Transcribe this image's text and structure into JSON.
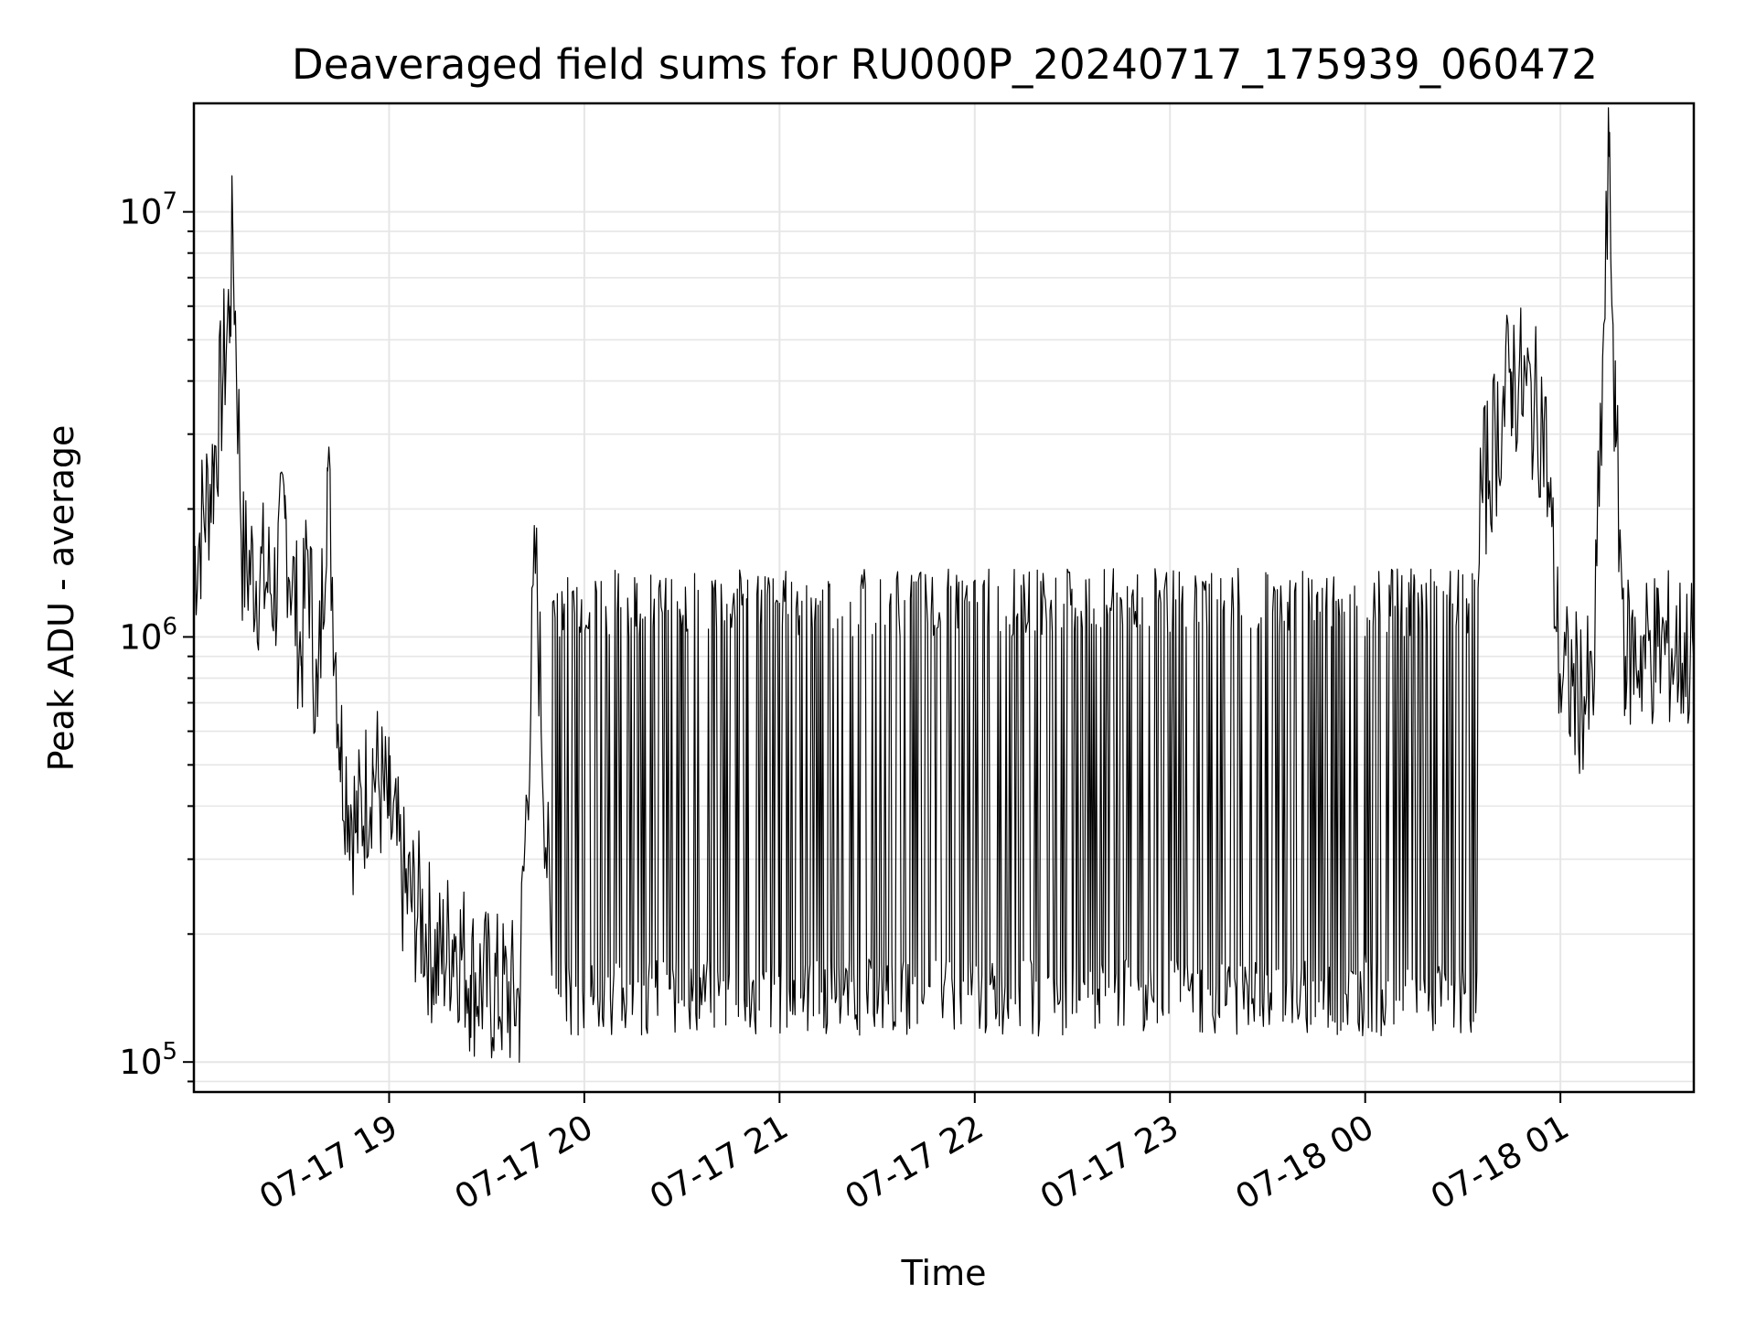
{
  "chart_data": {
    "type": "line",
    "title": "Deaveraged field sums for RU000P_20240717_175939_060472",
    "xlabel": "Time",
    "ylabel": "Peak ADU - average",
    "y_scale": "log",
    "ylim": [
      85000,
      18000000
    ],
    "xlim": [
      "2024-07-17 18:00",
      "2024-07-18 01:41"
    ],
    "grid": true,
    "line_color": "#000000",
    "grid_color": "#e6e6e6",
    "x_ticks": [
      {
        "label": "07-17 19",
        "value": "2024-07-17 19:00"
      },
      {
        "label": "07-17 20",
        "value": "2024-07-17 20:00"
      },
      {
        "label": "07-17 21",
        "value": "2024-07-17 21:00"
      },
      {
        "label": "07-17 22",
        "value": "2024-07-17 22:00"
      },
      {
        "label": "07-17 23",
        "value": "2024-07-17 23:00"
      },
      {
        "label": "07-18 00",
        "value": "2024-07-18 00:00"
      },
      {
        "label": "07-18 01",
        "value": "2024-07-18 01:00"
      }
    ],
    "y_ticks": [
      {
        "base": "10",
        "exp": "5",
        "value": 100000
      },
      {
        "base": "10",
        "exp": "6",
        "value": 1000000
      },
      {
        "base": "10",
        "exp": "7",
        "value": 10000000
      }
    ],
    "series": [
      {
        "points": [
          [
            "2024-07-17 18:00",
            1500000
          ],
          [
            "2024-07-17 18:06",
            2500000
          ],
          [
            "2024-07-17 18:09",
            4200000
          ],
          [
            "2024-07-17 18:11",
            6000000
          ],
          [
            "2024-07-17 18:12",
            8800000
          ],
          [
            "2024-07-17 18:15",
            1500000
          ],
          [
            "2024-07-17 18:25",
            1300000
          ],
          [
            "2024-07-17 18:28",
            1900000
          ],
          [
            "2024-07-17 18:33",
            900000
          ],
          [
            "2024-07-17 18:35",
            1600000
          ],
          [
            "2024-07-17 18:38",
            650000
          ],
          [
            "2024-07-17 18:41",
            2500000
          ],
          [
            "2024-07-17 18:45",
            550000
          ],
          [
            "2024-07-17 18:50",
            350000
          ],
          [
            "2024-07-17 18:55",
            500000
          ],
          [
            "2024-07-17 19:00",
            380000
          ],
          [
            "2024-07-17 19:05",
            250000
          ],
          [
            "2024-07-17 19:10",
            220000
          ],
          [
            "2024-07-17 19:15",
            170000
          ],
          [
            "2024-07-17 19:20",
            200000
          ],
          [
            "2024-07-17 19:25",
            160000
          ],
          [
            "2024-07-17 19:30",
            150000
          ],
          [
            "2024-07-17 19:40",
            140000
          ],
          [
            "2024-07-17 19:45",
            1500000
          ],
          [
            "2024-07-17 19:50",
            160000
          ],
          [
            "2024-07-17 20:00",
            150000
          ],
          [
            "2024-07-17 20:15",
            145000
          ],
          [
            "2024-07-17 20:30",
            140000
          ],
          [
            "2024-07-17 20:40",
            1300000
          ],
          [
            "2024-07-17 20:50",
            135000
          ],
          [
            "2024-07-17 21:00",
            1200000
          ],
          [
            "2024-07-17 21:15",
            1350000
          ],
          [
            "2024-07-17 21:30",
            130000
          ],
          [
            "2024-07-17 21:40",
            120000
          ],
          [
            "2024-07-17 21:55",
            1300000
          ],
          [
            "2024-07-17 22:15",
            1400000
          ],
          [
            "2024-07-17 22:30",
            130000
          ],
          [
            "2024-07-17 22:50",
            1400000
          ],
          [
            "2024-07-17 23:10",
            1350000
          ],
          [
            "2024-07-17 23:30",
            1400000
          ],
          [
            "2024-07-17 23:50",
            125000
          ],
          [
            "2024-07-18 00:00",
            180000
          ],
          [
            "2024-07-18 00:15",
            1400000
          ],
          [
            "2024-07-18 00:30",
            1400000
          ],
          [
            "2024-07-18 00:45",
            4200000
          ],
          [
            "2024-07-18 00:55",
            3200000
          ],
          [
            "2024-07-18 01:00",
            800000
          ],
          [
            "2024-07-18 01:10",
            700000
          ],
          [
            "2024-07-18 01:15",
            13500000
          ],
          [
            "2024-07-18 01:17",
            2800000
          ],
          [
            "2024-07-18 01:20",
            900000
          ],
          [
            "2024-07-18 01:30",
            950000
          ],
          [
            "2024-07-18 01:41",
            900000
          ]
        ]
      }
    ]
  }
}
